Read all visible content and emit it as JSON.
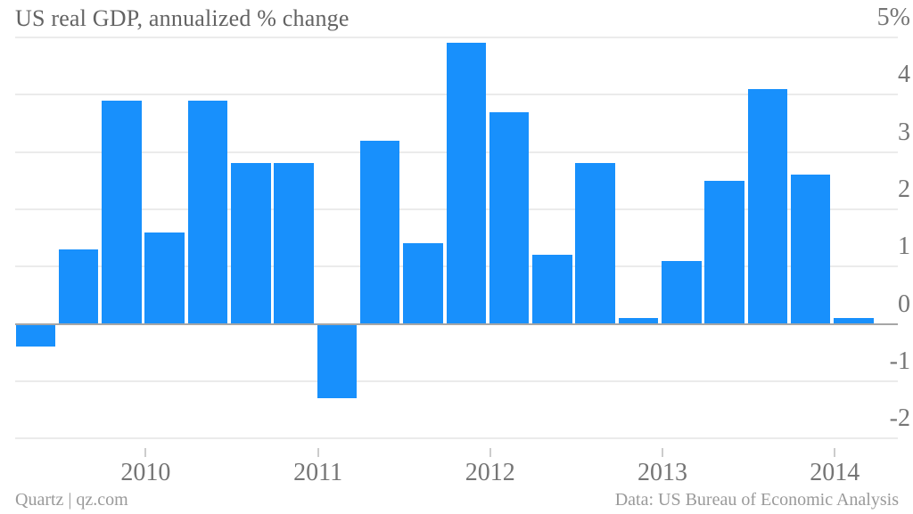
{
  "chart_data": {
    "type": "bar",
    "title": "US real GDP, annualized % change",
    "periods": [
      "2009 Q2",
      "2009 Q3",
      "2009 Q4",
      "2010 Q1",
      "2010 Q2",
      "2010 Q3",
      "2010 Q4",
      "2011 Q1",
      "2011 Q2",
      "2011 Q3",
      "2011 Q4",
      "2012 Q1",
      "2012 Q2",
      "2012 Q3",
      "2012 Q4",
      "2013 Q1",
      "2013 Q2",
      "2013 Q3",
      "2013 Q4",
      "2014 Q1"
    ],
    "values": [
      -0.4,
      1.3,
      3.9,
      1.6,
      3.9,
      2.8,
      2.8,
      -1.3,
      3.2,
      1.4,
      4.9,
      3.7,
      1.2,
      2.8,
      0.1,
      1.1,
      2.5,
      4.1,
      2.6,
      0.1
    ],
    "ylabel": "",
    "xlabel": "",
    "ylim": [
      -2.4,
      5.2
    ],
    "grid": true,
    "legend_position": "none",
    "y_axis": {
      "side": "right",
      "ticks": [
        {
          "label": "5%",
          "value": 5
        },
        {
          "label": "4",
          "value": 4
        },
        {
          "label": "3",
          "value": 3
        },
        {
          "label": "2",
          "value": 2
        },
        {
          "label": "1",
          "value": 1
        },
        {
          "label": "0",
          "value": 0
        },
        {
          "label": "-1",
          "value": -1
        },
        {
          "label": "-2",
          "value": -2
        }
      ]
    },
    "x_axis": {
      "ticks": [
        {
          "label": "2010",
          "first_bar_index": 3
        },
        {
          "label": "2011",
          "first_bar_index": 7
        },
        {
          "label": "2012",
          "first_bar_index": 11
        },
        {
          "label": "2013",
          "first_bar_index": 15
        },
        {
          "label": "2014",
          "first_bar_index": 19
        }
      ]
    }
  },
  "footer": {
    "left": "Quartz | qz.com",
    "right": "Data: US Bureau of Economic Analysis"
  },
  "colors": {
    "bar": "#1890fc",
    "gridline": "#ebebeb",
    "zero_line": "#a6a6a6",
    "title_text": "#636363",
    "axis_text": "#757575",
    "footer_text": "#9a9a9a",
    "x_tick_mark": "#cccccc",
    "background": "#ffffff"
  }
}
